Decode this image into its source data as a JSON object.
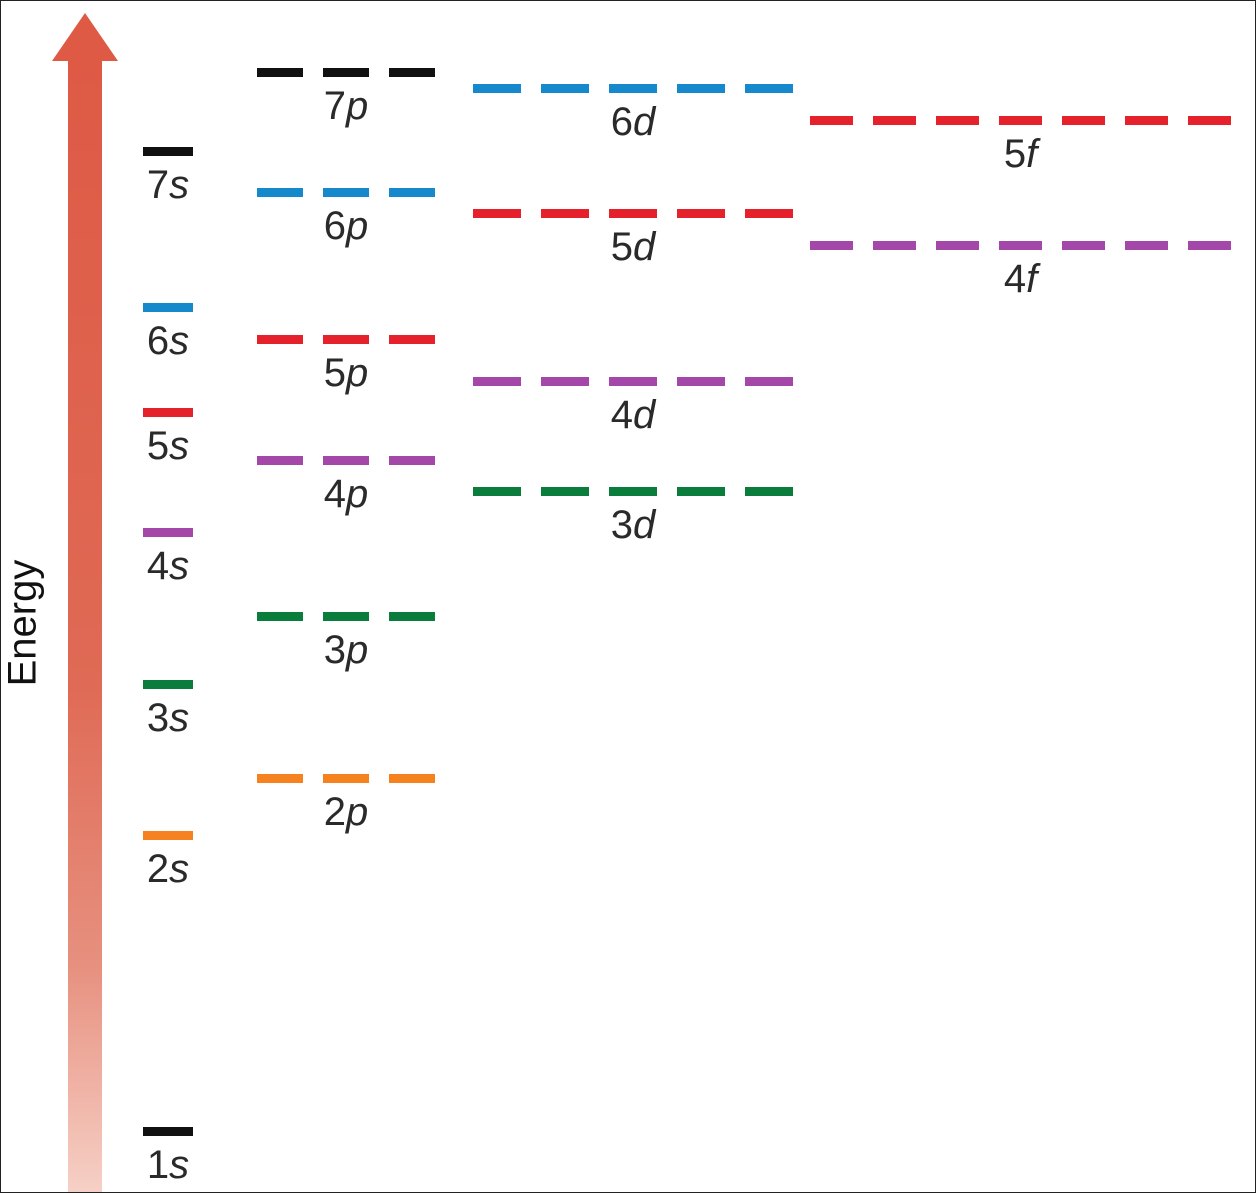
{
  "axis": {
    "label": "Energy"
  },
  "orbitals": [
    {
      "n": "1",
      "l": "s",
      "color": "#111111"
    },
    {
      "n": "2",
      "l": "s",
      "color": "#f5821f"
    },
    {
      "n": "3",
      "l": "s",
      "color": "#0a7d3c"
    },
    {
      "n": "4",
      "l": "s",
      "color": "#a347a8"
    },
    {
      "n": "5",
      "l": "s",
      "color": "#e5222c"
    },
    {
      "n": "6",
      "l": "s",
      "color": "#1589cc"
    },
    {
      "n": "7",
      "l": "s",
      "color": "#111111"
    },
    {
      "n": "2",
      "l": "p",
      "color": "#f5821f"
    },
    {
      "n": "3",
      "l": "p",
      "color": "#0a7d3c"
    },
    {
      "n": "4",
      "l": "p",
      "color": "#a347a8"
    },
    {
      "n": "5",
      "l": "p",
      "color": "#e5222c"
    },
    {
      "n": "6",
      "l": "p",
      "color": "#1589cc"
    },
    {
      "n": "7",
      "l": "p",
      "color": "#111111"
    },
    {
      "n": "3",
      "l": "d",
      "color": "#0a7d3c"
    },
    {
      "n": "4",
      "l": "d",
      "color": "#a347a8"
    },
    {
      "n": "5",
      "l": "d",
      "color": "#e5222c"
    },
    {
      "n": "6",
      "l": "d",
      "color": "#1589cc"
    },
    {
      "n": "4",
      "l": "f",
      "color": "#a347a8"
    },
    {
      "n": "5",
      "l": "f",
      "color": "#e5222c"
    }
  ]
}
